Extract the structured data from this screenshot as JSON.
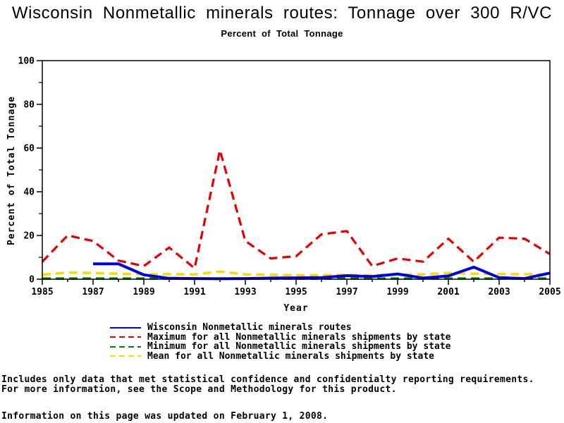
{
  "title": "Wisconsin Nonmetallic minerals routes: Tonnage over 300 R/VC",
  "subtitle": "Percent of Total Tonnage",
  "chart_data": {
    "type": "line",
    "xlabel": "Year",
    "ylabel": "Percent of Total Tonnage",
    "xlim": [
      1985,
      2005
    ],
    "ylim": [
      0,
      100
    ],
    "grid": "off",
    "frame": "box",
    "legend_position": "bottom",
    "xticks_labeled": [
      1985,
      1987,
      1989,
      1991,
      1993,
      1995,
      1997,
      1999,
      2001,
      2003,
      2005
    ],
    "yticks_major": [
      0,
      20,
      40,
      60,
      80,
      100
    ],
    "yticks_minor": [
      10,
      30,
      50,
      70,
      90
    ],
    "series": [
      {
        "name": "Wisconsin Nonmetallic minerals routes",
        "color": "#0000e6",
        "style": "solid",
        "width": 4,
        "x": [
          1987,
          1988,
          1989,
          1990,
          1991,
          1992,
          1993,
          1994,
          1995,
          1996,
          1997,
          1998,
          1999,
          2000,
          2001,
          2002,
          2003,
          2004,
          2005
        ],
        "values": [
          7,
          7,
          2,
          0.4,
          0.3,
          0.2,
          0.3,
          0.5,
          0.6,
          0.7,
          1.6,
          1.2,
          2.4,
          0.5,
          1.5,
          5.5,
          0.7,
          0.3,
          2.8
        ]
      },
      {
        "name": "Maximum for all Nonmetallic minerals shipments by state",
        "color": "#e60000",
        "style": "dashed",
        "width": 3.2,
        "x": [
          1985,
          1986,
          1987,
          1988,
          1989,
          1990,
          1991,
          1992,
          1993,
          1994,
          1995,
          1996,
          1997,
          1998,
          1999,
          2000,
          2001,
          2002,
          2003,
          2004,
          2005
        ],
        "values": [
          8,
          20,
          17.5,
          8.5,
          6,
          14.5,
          5,
          59,
          17.5,
          9.5,
          10.5,
          20.5,
          22,
          6,
          9.5,
          8,
          18.5,
          8,
          19,
          18.5,
          11.5
        ]
      },
      {
        "name": "Minimum for all Nonmetallic minerals shipments by state",
        "color": "#008000",
        "style": "dashed",
        "width": 3.5,
        "x": [
          1985,
          1986,
          1987,
          1988,
          1989,
          1990,
          1991,
          1992,
          1993,
          1994,
          1995,
          1996,
          1997,
          1998,
          1999,
          2000,
          2001,
          2002,
          2003,
          2004,
          2005
        ],
        "values": [
          0.3,
          0.3,
          0.3,
          0.3,
          0.3,
          0.3,
          0.3,
          0.3,
          0.3,
          0.3,
          0.3,
          0.3,
          0.3,
          0.3,
          0.3,
          0.3,
          0.3,
          0.3,
          0.3,
          0.3,
          0.3
        ]
      },
      {
        "name": "Mean for all Nonmetallic minerals shipments by state",
        "color": "#ffd700",
        "style": "dashed",
        "width": 3.5,
        "x": [
          1985,
          1986,
          1987,
          1988,
          1989,
          1990,
          1991,
          1992,
          1993,
          1994,
          1995,
          1996,
          1997,
          1998,
          1999,
          2000,
          2001,
          2002,
          2003,
          2004,
          2005
        ],
        "values": [
          2,
          3,
          2.8,
          2.5,
          2.2,
          2.3,
          2.2,
          3.5,
          2.2,
          2,
          1.8,
          1.8,
          2,
          1.8,
          2.2,
          2.2,
          2.8,
          2.5,
          2.3,
          2.3,
          2.2
        ]
      }
    ]
  },
  "footer": {
    "line1": "Includes only data that met statistical confidence and confidentialty reporting requirements.",
    "line2": "For more information, see the Scope and Methodology for this product.",
    "updated": "Information on this page was updated on February 1, 2008."
  }
}
